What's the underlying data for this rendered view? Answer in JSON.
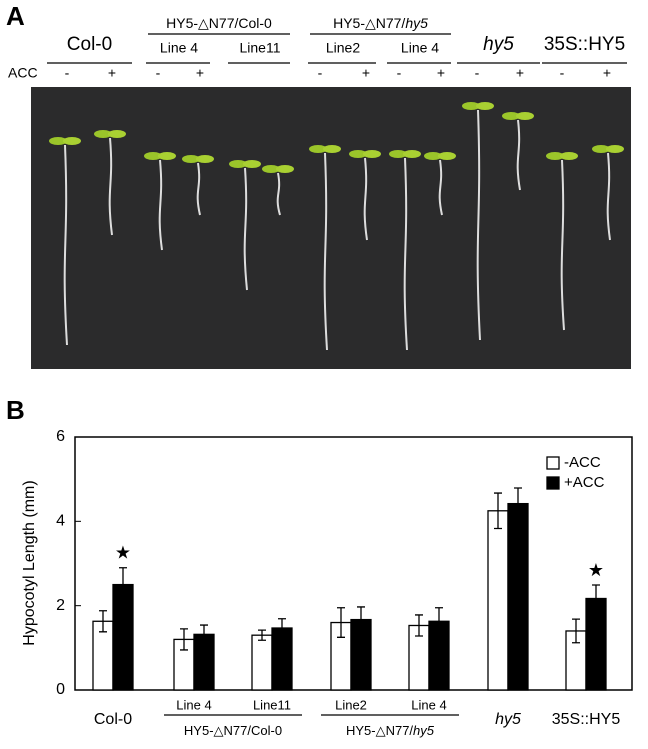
{
  "panel_a": {
    "label": "A",
    "row_label": "ACC",
    "genotypes": [
      "Col-0",
      "hy5",
      "35S::HY5"
    ],
    "groups": [
      {
        "label": [
          "HY5-△N77/Col-0"
        ],
        "lines": [
          "Line 4",
          "Line11"
        ]
      },
      {
        "label": [
          "HY5-△N77/",
          "hy5"
        ],
        "lines": [
          "Line2",
          "Line 4"
        ]
      }
    ],
    "treatments": [
      "-",
      "+",
      "-",
      "+",
      "-",
      "+",
      "-",
      "+",
      "-",
      "+",
      "-",
      "+"
    ]
  },
  "chart_data": {
    "type": "bar",
    "panel_label": "B",
    "y_label": "Hypocotyl Length (mm)",
    "categories": [
      "Col-0",
      "Line 4",
      "Line11",
      "Line2",
      "Line 4",
      "hy5",
      "35S::HY5"
    ],
    "category_groups": [
      [
        "HY5-△N77/Col-0"
      ],
      [
        "HY5-△N77/",
        "hy5"
      ]
    ],
    "series": [
      {
        "name": "-ACC",
        "color": "#ffffff",
        "values": [
          1.63,
          1.2,
          1.3,
          1.6,
          1.53,
          4.25,
          1.4
        ],
        "errors": [
          0.25,
          0.25,
          0.12,
          0.35,
          0.25,
          0.42,
          0.28
        ]
      },
      {
        "name": "+ACC",
        "color": "#000000",
        "values": [
          2.5,
          1.32,
          1.47,
          1.67,
          1.63,
          4.42,
          2.17
        ],
        "errors": [
          0.4,
          0.22,
          0.22,
          0.3,
          0.32,
          0.37,
          0.32
        ],
        "annotations": [
          "★",
          null,
          null,
          null,
          null,
          null,
          "★"
        ]
      }
    ],
    "ylim": [
      0,
      6
    ],
    "yticks": [
      0,
      2,
      4,
      6
    ],
    "legend": "upper right"
  }
}
